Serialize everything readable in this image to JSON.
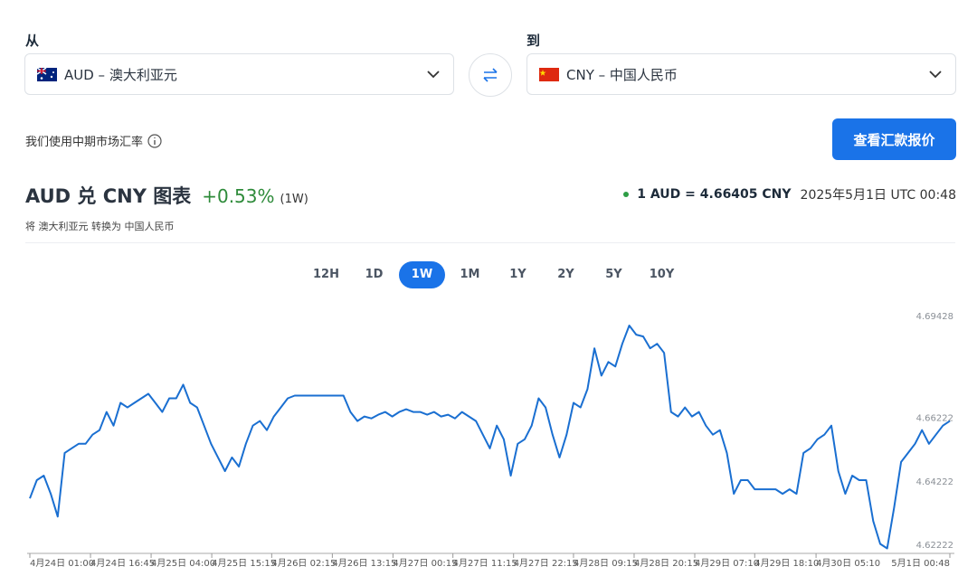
{
  "from_label": "从",
  "to_label": "到",
  "from_currency": "AUD – 澳大利亚元",
  "to_currency": "CNY – 中国人民币",
  "rate_note": "我们使用中期市场汇率",
  "quote_button": "查看汇款报价",
  "chart_header": {
    "title": "AUD 兑 CNY 图表",
    "change": "+0.53%",
    "period": "(1W)",
    "rate": "1 AUD = 4.66405 CNY",
    "timestamp": "2025年5月1日 UTC 00:48",
    "subtitle": "将 澳大利亚元 转换为 中国人民币"
  },
  "ranges": {
    "options": [
      "12H",
      "1D",
      "1W",
      "1M",
      "1Y",
      "2Y",
      "5Y",
      "10Y"
    ],
    "selected": "1W"
  },
  "chart_data": {
    "type": "line",
    "color": "#1a6fd1",
    "series": [
      {
        "name": "AUD/CNY",
        "color": "#1a6fd1",
        "values": [
          4.63702,
          4.64275,
          4.64418,
          4.63845,
          4.63129,
          4.65133,
          4.65277,
          4.6542,
          4.6542,
          4.65706,
          4.65849,
          4.66422,
          4.65992,
          4.66708,
          4.66565,
          4.66708,
          4.66851,
          4.66994,
          4.66708,
          4.66422,
          4.66851,
          4.66851,
          4.67281,
          4.66708,
          4.66565,
          4.65992,
          4.6542,
          4.6499,
          4.64561,
          4.6499,
          4.64704,
          4.6542,
          4.65992,
          4.66136,
          4.65849,
          4.66279,
          4.66565,
          4.66851,
          4.66937,
          4.66937,
          4.66937,
          4.66937,
          4.66937,
          4.66937,
          4.66937,
          4.66937,
          4.66422,
          4.66136,
          4.66279,
          4.66221,
          4.66336,
          4.66422,
          4.66279,
          4.66422,
          4.66508,
          4.66422,
          4.66422,
          4.66336,
          4.66422,
          4.66279,
          4.66336,
          4.66221,
          4.66422,
          4.66279,
          4.66136,
          4.65706,
          4.65277,
          4.65992,
          4.65563,
          4.64418,
          4.6542,
          4.65563,
          4.65992,
          4.66851,
          4.66565,
          4.65706,
          4.6499,
          4.65706,
          4.66708,
          4.66565,
          4.67138,
          4.68426,
          4.67567,
          4.67996,
          4.67853,
          4.68569,
          4.69142,
          4.68855,
          4.68798,
          4.68426,
          4.68569,
          4.68283,
          4.66422,
          4.66279,
          4.66565,
          4.66279,
          4.66422,
          4.65992,
          4.65706,
          4.65849,
          4.65133,
          4.63845,
          4.64275,
          4.64275,
          4.63988,
          4.63988,
          4.63988,
          4.63988,
          4.63845,
          4.63988,
          4.63845,
          4.65133,
          4.65277,
          4.65563,
          4.65706,
          4.65992,
          4.64561,
          4.63845,
          4.64418,
          4.64275,
          4.64275,
          4.62986,
          4.6227,
          4.62127,
          4.63416,
          4.64847,
          4.65133,
          4.6542,
          4.65849,
          4.6542,
          4.65706,
          4.65992,
          4.66136
        ]
      }
    ],
    "xlim": [
      0,
      132
    ],
    "xticks": [
      {
        "value": 0,
        "label": "4月24日 01:00"
      },
      {
        "value": 8.7,
        "label": "4月24日 16:45"
      },
      {
        "value": 17.4,
        "label": "4月25日 04:00"
      },
      {
        "value": 26.1,
        "label": "4月25日 15:15"
      },
      {
        "value": 34.7,
        "label": "4月26日 02:15"
      },
      {
        "value": 43.4,
        "label": "4月26日 13:15"
      },
      {
        "value": 52.1,
        "label": "4月27日 00:15"
      },
      {
        "value": 60.7,
        "label": "4月27日 11:15"
      },
      {
        "value": 69.4,
        "label": "4月27日 22:15"
      },
      {
        "value": 78,
        "label": "4月28日 09:15"
      },
      {
        "value": 86.7,
        "label": "4月28日 20:15"
      },
      {
        "value": 95.4,
        "label": "4月29日 07:10"
      },
      {
        "value": 104,
        "label": "4月29日 18:10"
      },
      {
        "value": 112.8,
        "label": "4月30日 05:10"
      },
      {
        "value": 132,
        "label": "5月1日 00:48"
      }
    ],
    "ylim": [
      4.6197,
      4.6957
    ],
    "yticks": [
      4.62222,
      4.64222,
      4.66222,
      4.69428
    ],
    "grid": false
  }
}
